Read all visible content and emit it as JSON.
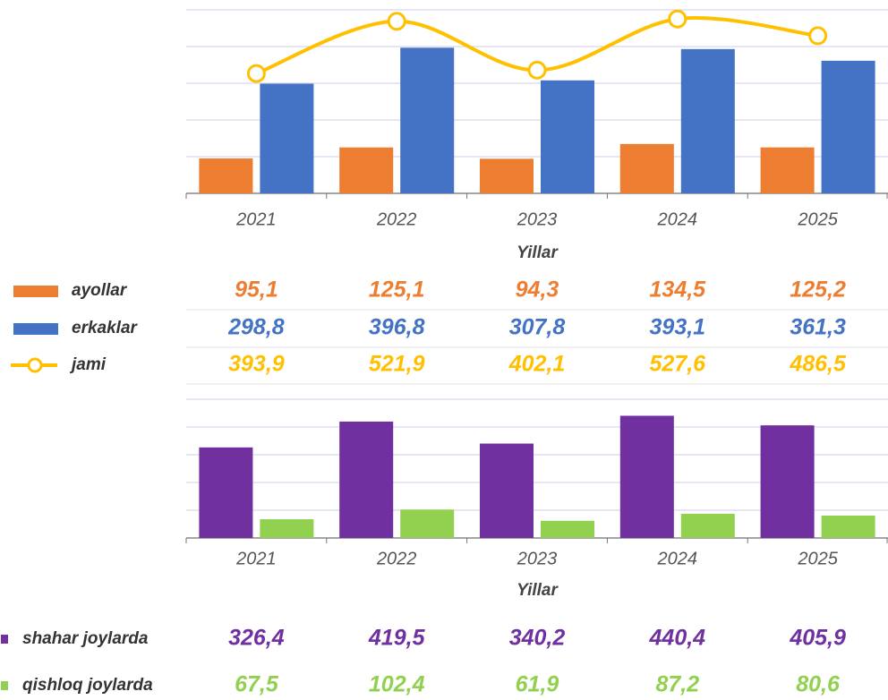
{
  "chart_data": [
    {
      "type": "bar",
      "categories": [
        "2021",
        "2022",
        "2023",
        "2024",
        "2025"
      ],
      "x_label": "Yillar",
      "ylim": [
        0,
        500
      ],
      "yticks": [
        0,
        100,
        200,
        300,
        400,
        500
      ],
      "y2lim": [
        100,
        550
      ],
      "grid": true,
      "series": [
        {
          "name": "ayollar",
          "type": "bar",
          "color": "#ED7D31",
          "values": [
            95.1,
            125.1,
            94.3,
            134.5,
            125.2
          ],
          "value_labels": [
            "95,1",
            "125,1",
            "94,3",
            "134,5",
            "125,2"
          ]
        },
        {
          "name": "erkaklar",
          "type": "bar",
          "color": "#4472C4",
          "values": [
            298.8,
            396.8,
            307.8,
            393.1,
            361.3
          ],
          "value_labels": [
            "298,8",
            "396,8",
            "307,8",
            "393,1",
            "361,3"
          ]
        },
        {
          "name": "jami",
          "type": "line",
          "axis": "y2",
          "color": "#FFC000",
          "values": [
            393.9,
            521.9,
            402.1,
            527.6,
            486.5
          ],
          "value_labels": [
            "393,9",
            "521,9",
            "402,1",
            "527,6",
            "486,5"
          ]
        }
      ]
    },
    {
      "type": "bar",
      "categories": [
        "2021",
        "2022",
        "2023",
        "2024",
        "2025"
      ],
      "x_label": "Yillar",
      "ylim": [
        0,
        500
      ],
      "yticks": [
        0,
        100,
        200,
        300,
        400,
        500
      ],
      "grid": true,
      "series": [
        {
          "name": "shahar joylarda",
          "type": "bar",
          "color": "#7030A0",
          "values": [
            326.4,
            419.5,
            340.2,
            440.4,
            405.9
          ],
          "value_labels": [
            "326,4",
            "419,5",
            "340,2",
            "440,4",
            "405,9"
          ]
        },
        {
          "name": "qishloq joylarda",
          "type": "bar",
          "color": "#92D050",
          "values": [
            67.5,
            102.4,
            61.9,
            87.2,
            80.6
          ],
          "value_labels": [
            "67,5",
            "102,4",
            "61,9",
            "87,2",
            "80,6"
          ]
        }
      ]
    }
  ]
}
